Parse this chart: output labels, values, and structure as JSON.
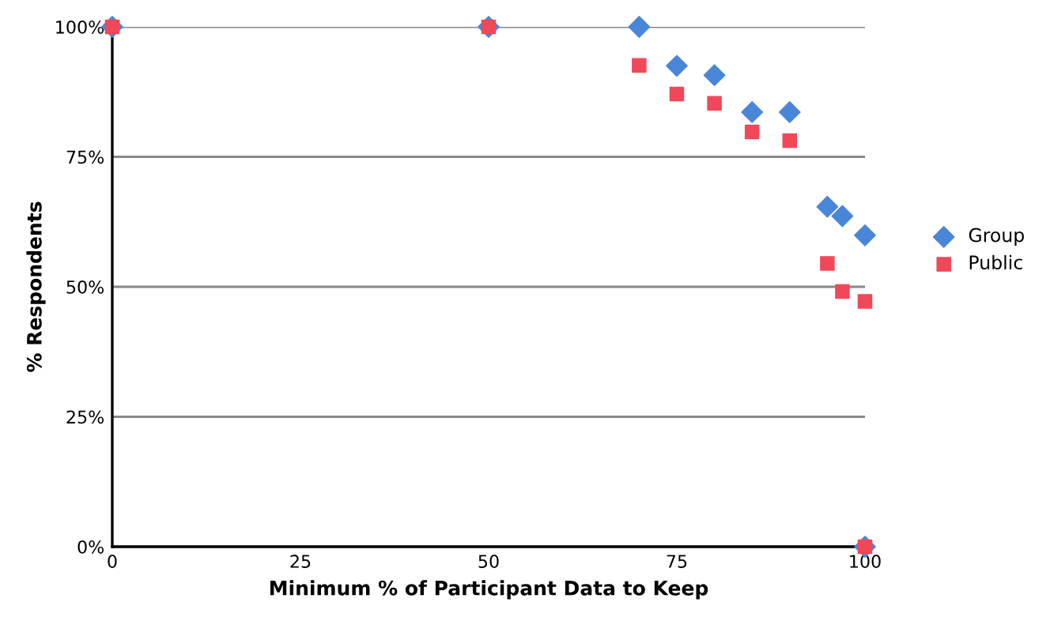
{
  "chart_data": {
    "type": "scatter",
    "xlabel": "Minimum % of Participant Data to Keep",
    "ylabel": "% Respondents",
    "xlim": [
      0,
      100
    ],
    "xticks": [
      0,
      25,
      50,
      75,
      100
    ],
    "ylim": [
      0,
      100
    ],
    "yticks": [
      {
        "value": 0,
        "label": "0%"
      },
      {
        "value": 25,
        "label": "25%"
      },
      {
        "value": 50,
        "label": "50%"
      },
      {
        "value": 75,
        "label": "75%"
      },
      {
        "value": 100,
        "label": "100%"
      }
    ],
    "grid": "y",
    "legend": "right",
    "series": [
      {
        "name": "Group",
        "color": "#4a86d8",
        "marker": "diamond",
        "x": [
          0,
          50,
          70,
          75,
          80,
          85,
          90,
          95,
          97,
          100,
          100
        ],
        "values": [
          100,
          100,
          100,
          92.5,
          90.7,
          83.6,
          83.6,
          65.4,
          63.6,
          59.9,
          0
        ]
      },
      {
        "name": "Public",
        "color": "#f04858",
        "marker": "square",
        "x": [
          0,
          50,
          70,
          75,
          80,
          85,
          90,
          95,
          97,
          100,
          100
        ],
        "values": [
          100,
          100,
          92.6,
          87.1,
          85.3,
          79.8,
          78.1,
          54.5,
          49.1,
          47.2,
          0
        ]
      }
    ]
  }
}
